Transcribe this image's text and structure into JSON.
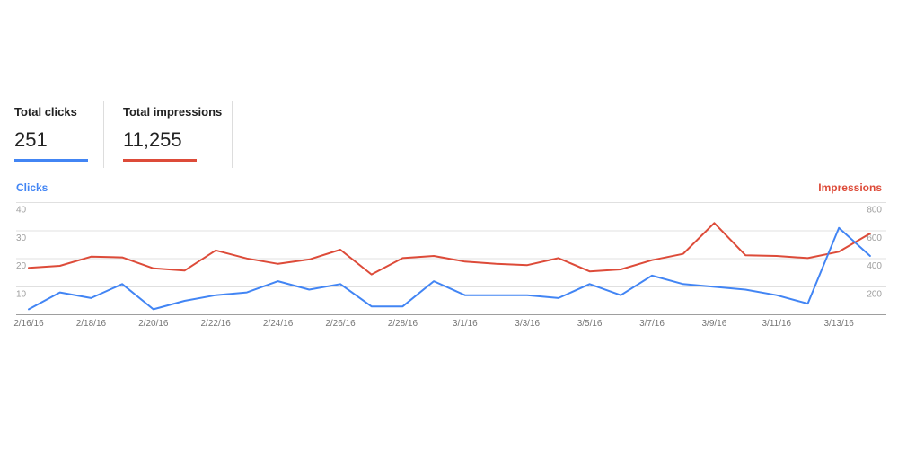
{
  "metrics": {
    "cards": [
      {
        "label": "Total clicks",
        "value": "251",
        "color": "#4285f4"
      },
      {
        "label": "Total impressions",
        "value": "11,255",
        "color": "#dd4b39"
      }
    ]
  },
  "chart_data": {
    "type": "line",
    "title": "",
    "x": [
      "2/16/16",
      "2/17/16",
      "2/18/16",
      "2/19/16",
      "2/20/16",
      "2/21/16",
      "2/22/16",
      "2/23/16",
      "2/24/16",
      "2/25/16",
      "2/26/16",
      "2/27/16",
      "2/28/16",
      "2/29/16",
      "3/1/16",
      "3/2/16",
      "3/3/16",
      "3/4/16",
      "3/5/16",
      "3/6/16",
      "3/7/16",
      "3/8/16",
      "3/9/16",
      "3/10/16",
      "3/11/16",
      "3/12/16",
      "3/13/16",
      "3/14/16"
    ],
    "x_tick_step": 2,
    "series": [
      {
        "name": "Clicks",
        "axis": "left",
        "color": "#4285f4",
        "values": [
          2,
          8,
          6,
          11,
          2,
          5,
          7,
          8,
          12,
          9,
          11,
          3,
          3,
          12,
          7,
          7,
          7,
          6,
          11,
          7,
          14,
          11,
          10,
          9,
          7,
          4,
          31,
          21
        ]
      },
      {
        "name": "Impressions",
        "axis": "right",
        "color": "#dd4b39",
        "values": [
          335,
          350,
          415,
          410,
          332,
          316,
          460,
          402,
          364,
          395,
          465,
          288,
          405,
          420,
          380,
          364,
          355,
          405,
          310,
          324,
          390,
          435,
          655,
          425,
          420,
          405,
          450,
          580
        ]
      }
    ],
    "left_axis": {
      "title": "Clicks",
      "range": [
        0,
        40
      ],
      "ticks": [
        40,
        30,
        20,
        10
      ]
    },
    "right_axis": {
      "title": "Impressions",
      "range": [
        0,
        800
      ],
      "ticks": [
        800,
        600,
        400,
        200
      ]
    },
    "grid": true,
    "legend_position": "none",
    "colors": {
      "gridline": "#e0e0e0",
      "baseline": "#9e9e9e",
      "y_tick_text": "#9e9e9e",
      "x_tick_text": "#757575"
    }
  }
}
